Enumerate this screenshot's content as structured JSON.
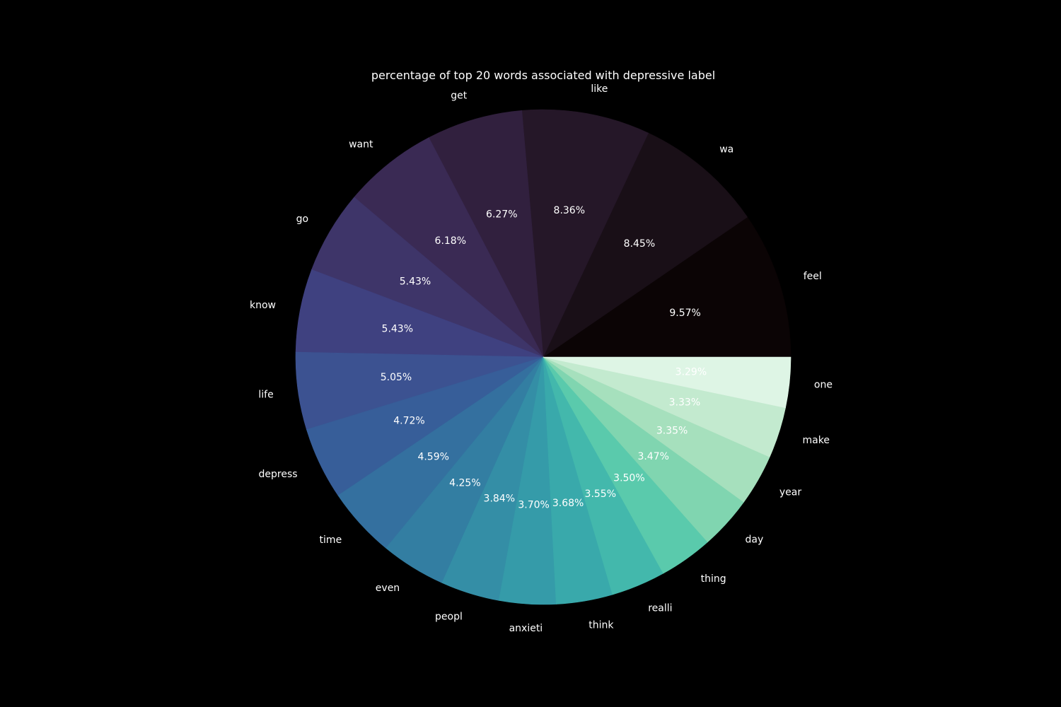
{
  "chart_data": {
    "type": "pie",
    "title": "percentage of top 20 words associated with depressive label",
    "start_angle_deg": 0,
    "direction": "counterclockwise",
    "background": "#000000",
    "text_color": "#ffffff",
    "slices": [
      {
        "label": "feel",
        "value": 9.57,
        "pct_text": "9.57%",
        "color": "#0b0405"
      },
      {
        "label": "wa",
        "value": 8.45,
        "pct_text": "8.45%",
        "color": "#190f17"
      },
      {
        "label": "like",
        "value": 8.36,
        "pct_text": "8.36%",
        "color": "#251728"
      },
      {
        "label": "get",
        "value": 6.27,
        "pct_text": "6.27%",
        "color": "#31203e"
      },
      {
        "label": "want",
        "value": 6.18,
        "pct_text": "6.18%",
        "color": "#3a2a54"
      },
      {
        "label": "go",
        "value": 5.43,
        "pct_text": "5.43%",
        "color": "#3e3569"
      },
      {
        "label": "know",
        "value": 5.43,
        "pct_text": "5.43%",
        "color": "#3f4180"
      },
      {
        "label": "life",
        "value": 5.05,
        "pct_text": "5.05%",
        "color": "#3c5291"
      },
      {
        "label": "depress",
        "value": 4.72,
        "pct_text": "4.72%",
        "color": "#375e99"
      },
      {
        "label": "time",
        "value": 4.59,
        "pct_text": "4.59%",
        "color": "#34709f"
      },
      {
        "label": "even",
        "value": 4.25,
        "pct_text": "4.25%",
        "color": "#337ea2"
      },
      {
        "label": "peopl",
        "value": 3.84,
        "pct_text": "3.84%",
        "color": "#348ea6"
      },
      {
        "label": "anxieti",
        "value": 3.7,
        "pct_text": "3.70%",
        "color": "#359ba9"
      },
      {
        "label": "think",
        "value": 3.68,
        "pct_text": "3.68%",
        "color": "#39a9ab"
      },
      {
        "label": "realli",
        "value": 3.55,
        "pct_text": "3.55%",
        "color": "#43b8ac"
      },
      {
        "label": "thing",
        "value": 3.5,
        "pct_text": "3.50%",
        "color": "#5acaac"
      },
      {
        "label": "day",
        "value": 3.47,
        "pct_text": "3.47%",
        "color": "#80d5b0"
      },
      {
        "label": "year",
        "value": 3.35,
        "pct_text": "3.35%",
        "color": "#a6e0bd"
      },
      {
        "label": "make",
        "value": 3.33,
        "pct_text": "3.33%",
        "color": "#c3eacf"
      },
      {
        "label": "one",
        "value": 3.29,
        "pct_text": "3.29%",
        "color": "#def5e5"
      }
    ]
  }
}
